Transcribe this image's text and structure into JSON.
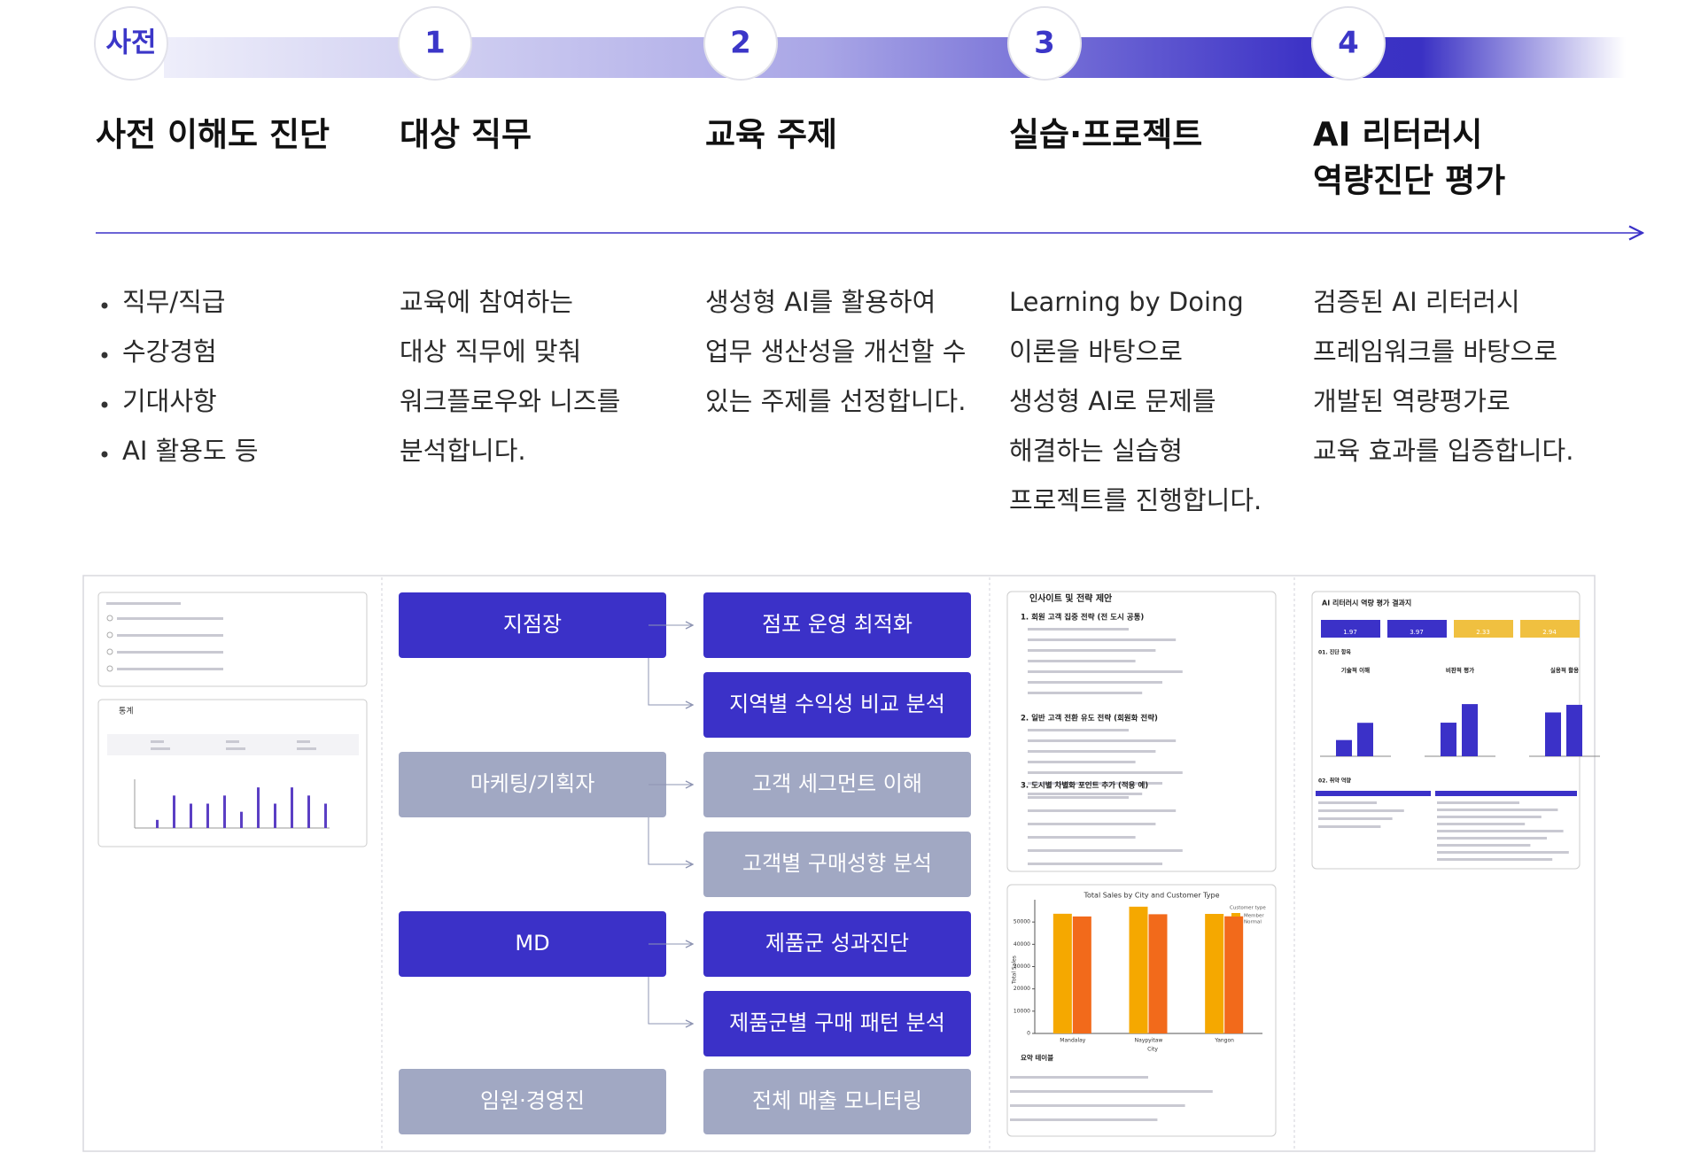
{
  "steps": [
    {
      "badge": "사전",
      "title": [
        "사전 이해도 진단"
      ],
      "list_style": "bullet",
      "body": [
        "직무/직급",
        "수강경험",
        "기대사항",
        "AI 활용도 등"
      ]
    },
    {
      "badge": "1",
      "title": [
        "대상 직무"
      ],
      "body": [
        "교육에 참여하는",
        "대상 직무에 맞춰",
        "워크플로우와 니즈를",
        "분석합니다."
      ]
    },
    {
      "badge": "2",
      "title": [
        "교육 주제"
      ],
      "body": [
        "생성형 AI를 활용하여",
        "업무 생산성을 개선할 수",
        "있는 주제를 선정합니다."
      ]
    },
    {
      "badge": "3",
      "title": [
        "실습·프로젝트"
      ],
      "body": [
        "Learning by Doing",
        "이론을 바탕으로",
        "생성형 AI로 문제를",
        "해결하는 실습형",
        "프로젝트를 진행합니다."
      ]
    },
    {
      "badge": "4",
      "title": [
        "AI 리터러시",
        "역량진단 평가"
      ],
      "body": [
        "검증된 AI 리터러시",
        "프레임워크를 바탕으로",
        "개발된 역량평가로",
        "교육 효과를 입증합니다."
      ]
    }
  ],
  "roles": [
    {
      "role": "지점장",
      "style": "primary",
      "tasks": [
        "점포 운영 최적화",
        "지역별 수익성 비교 분석"
      ]
    },
    {
      "role": "마케팅/기획자",
      "style": "secondary",
      "tasks": [
        "고객 세그먼트 이해",
        "고객별 구매성향 분석"
      ]
    },
    {
      "role": "MD",
      "style": "primary",
      "tasks": [
        "제품군 성과진단",
        "제품군별 구매 패턴 분석"
      ]
    },
    {
      "role": "임원·경영진",
      "style": "secondary",
      "tasks": [
        "전체 매출 모니터링"
      ]
    }
  ],
  "survey": {
    "stats_title": "통계",
    "histogram": {
      "values": [
        1,
        4,
        3,
        3,
        4,
        2,
        5,
        3,
        5,
        4,
        3
      ],
      "ylim": [
        0,
        6
      ],
      "color": "#5b3fc4"
    }
  },
  "insight": {
    "title": "인사이트 및 전략 제안",
    "sections": [
      "1. 회원 고객 집중 전략 (전 도시 공통)",
      "2. 일반 고객 전환 유도 전략 (회원화 전략)",
      "3. 도시별 차별화 포인트 추가 (적용 예)"
    ]
  },
  "chart_data": {
    "type": "bar",
    "title": "Total Sales by City and Customer Type",
    "x_label": "City",
    "y_label": "Total Sales",
    "categories": [
      "Mandalay",
      "Naypyitaw",
      "Yangon"
    ],
    "series": [
      {
        "name": "Member",
        "color": "#f5a800",
        "values": [
          53705,
          56881,
          53637
        ]
      },
      {
        "name": "Normal",
        "color": "#f26a1b",
        "values": [
          52493,
          53487,
          52563
        ]
      }
    ],
    "legend_title": "Customer type",
    "ylim": [
      0,
      60000
    ],
    "yticks": [
      0,
      10000,
      20000,
      30000,
      40000,
      50000
    ],
    "summary_title": "요약 테이블"
  },
  "report": {
    "title": "AI 리터러시 역량 평가 결과지",
    "scores": [
      "1.97",
      "3.97",
      "2.33",
      "2.94"
    ],
    "section1": "01. 진단 항목",
    "section2": "02. 취약 역량",
    "panels": [
      {
        "name": "기술적 이해",
        "values": [
          1.11,
          2.29
        ]
      },
      {
        "name": "비판적 평가",
        "values": [
          2.3,
          3.57
        ]
      },
      {
        "name": "실용적 활용",
        "values": [
          3.0,
          3.52
        ]
      }
    ],
    "ylim": [
      0,
      4
    ]
  }
}
